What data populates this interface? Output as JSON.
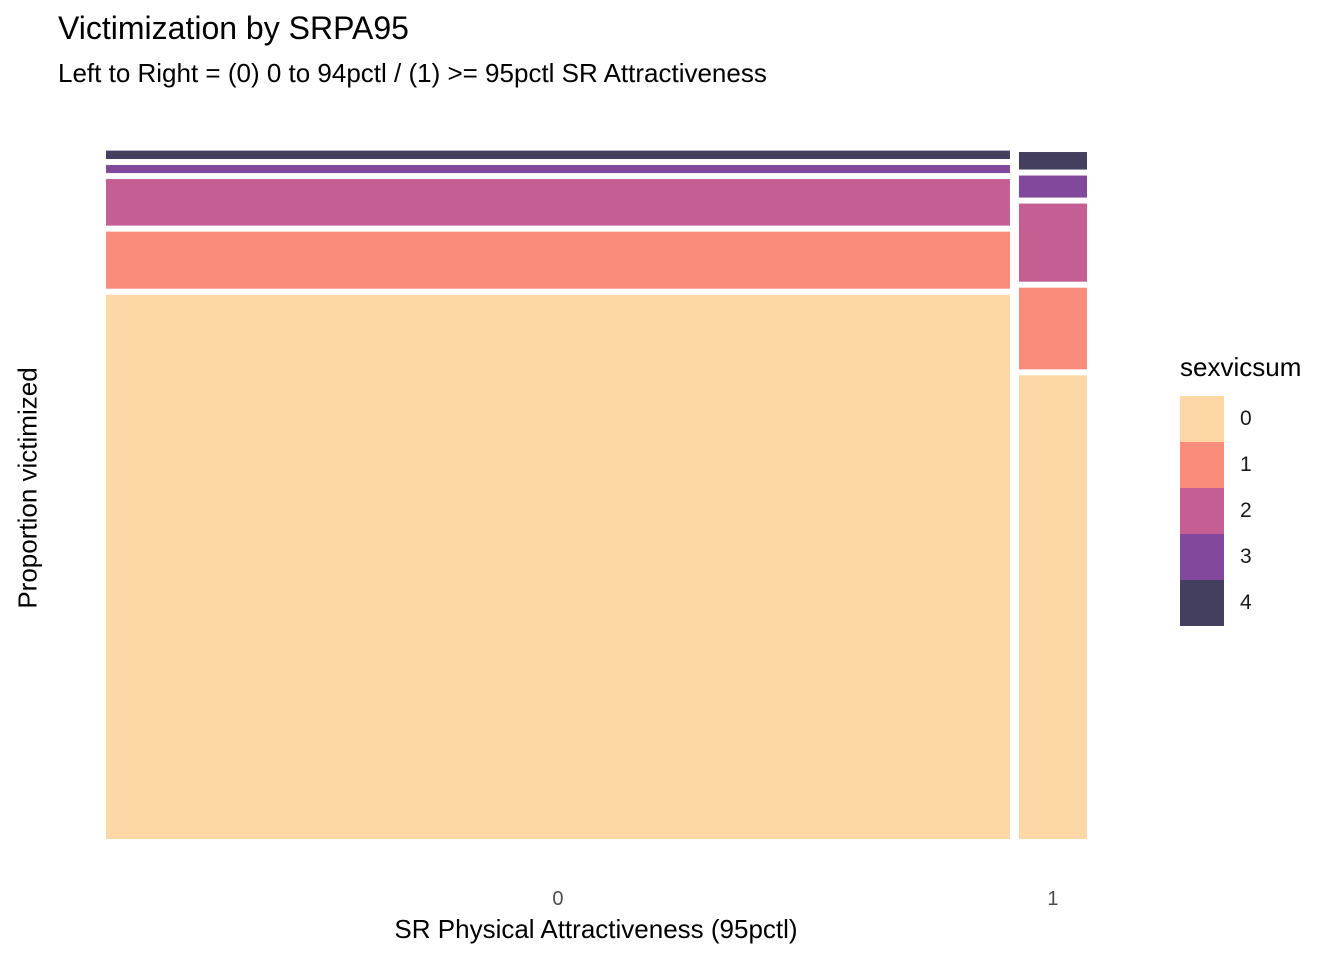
{
  "title": "Victimization by SRPA95",
  "subtitle": "Left to Right = (0) 0 to 94pctl / (1) >= 95pctl SR Attractiveness",
  "chart_data": {
    "type": "mosaic",
    "xlabel": "SR Physical Attractiveness  (95pctl)",
    "ylabel": "Proportion victimized",
    "legend_title": "sexvicsum",
    "legend_position": "right",
    "grid": false,
    "categories": [
      "0",
      "1"
    ],
    "category_widths": [
      0.93,
      0.07
    ],
    "fill_levels": [
      "0",
      "1",
      "2",
      "3",
      "4"
    ],
    "colors": [
      "#FDD8A6",
      "#F98C7B",
      "#C55E92",
      "#82489B",
      "#443E5F"
    ],
    "proportions": [
      [
        0.785,
        0.09,
        0.075,
        0.02,
        0.012
      ],
      [
        0.67,
        0.125,
        0.12,
        0.04,
        0.025
      ]
    ]
  }
}
